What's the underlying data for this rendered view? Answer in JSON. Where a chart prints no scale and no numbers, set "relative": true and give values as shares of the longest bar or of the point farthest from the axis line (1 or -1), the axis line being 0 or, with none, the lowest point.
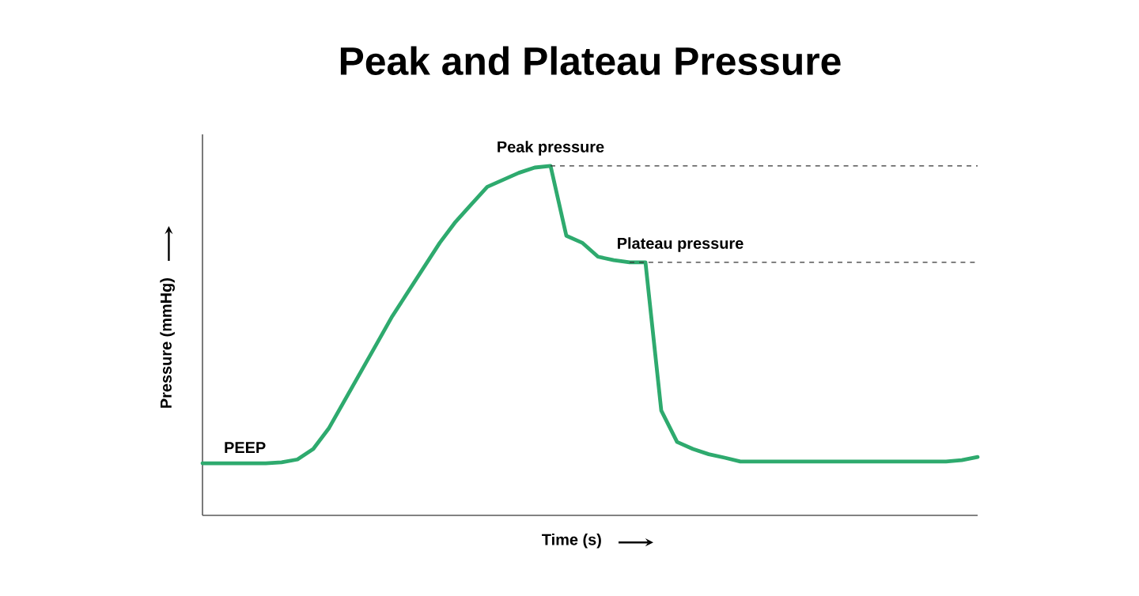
{
  "chart_data": {
    "type": "line",
    "title": "Peak and Plateau Pressure",
    "xlabel": "Time (s)",
    "ylabel": "Pressure (mmHg)",
    "relative": true,
    "marker": "none",
    "line_style": "solid",
    "categories": [
      null,
      null,
      null,
      null,
      null,
      null,
      null,
      null,
      null,
      null,
      null,
      null,
      null,
      null,
      null,
      null,
      null,
      null,
      null,
      null,
      null,
      null,
      null,
      null,
      null,
      null,
      null,
      null,
      null,
      null,
      null,
      null,
      null,
      null,
      null,
      null,
      null,
      null,
      null,
      null,
      null,
      null,
      null,
      null,
      null,
      null,
      null,
      null,
      null,
      null
    ],
    "series": [
      {
        "color": "#2eaa6e",
        "values": [
          0.149,
          0.149,
          0.149,
          0.149,
          0.149,
          0.152,
          0.16,
          0.19,
          0.25,
          0.33,
          0.41,
          0.49,
          0.57,
          0.64,
          0.71,
          0.78,
          0.84,
          0.89,
          0.94,
          0.96,
          0.98,
          0.995,
          1,
          0.8,
          0.78,
          0.74,
          0.73,
          0.724,
          0.724,
          0.3,
          0.21,
          0.19,
          0.175,
          0.165,
          0.154,
          0.154,
          0.154,
          0.154,
          0.154,
          0.154,
          0.154,
          0.154,
          0.154,
          0.154,
          0.154,
          0.154,
          0.154,
          0.154,
          0.158,
          0.167
        ]
      }
    ],
    "ref_lines": [
      {
        "axis": "y",
        "value": 1,
        "line_style": "dashed",
        "color": "#333333"
      },
      {
        "axis": "y",
        "value": 0.724,
        "line_style": "dashed",
        "color": "#333333"
      }
    ],
    "annotations": [
      {
        "text": "Peak pressure",
        "y": 1
      },
      {
        "text": "Plateau pressure",
        "y": 0.724
      },
      {
        "text": "PEEP",
        "y": 0.149
      }
    ]
  }
}
